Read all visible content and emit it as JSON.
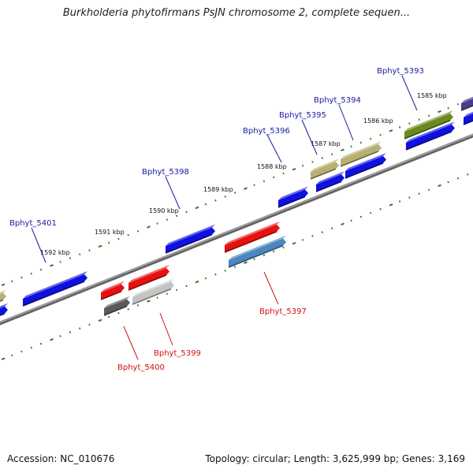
{
  "title": "Burkholderia phytofirmans PsJN chromosome 2, complete sequen...",
  "footer": {
    "accession": "Accession: NC_010676",
    "topology": "Topology: circular; Length: 3,625,999 bp; Genes: 3,169"
  },
  "colors": {
    "background": "#ffffff",
    "tick_dots": "#2e7d1e",
    "backbone": "#7a7a7a",
    "forward_label": "#1a1aa0",
    "reverse_label": "#cc1111",
    "gene_blue": "#1010e0",
    "gene_red": "#e81010",
    "gene_steelblue": "#4a86c0",
    "gene_khaki": "#b8b072",
    "gene_olive": "#6a8a20",
    "gene_grey": "#5a5a5a",
    "gene_lightgrey": "#c4c4c4",
    "gene_slate": "#4a3f8c"
  },
  "scale_labels": [
    "1585 kbp",
    "1586 kbp",
    "1587 kbp",
    "1588 kbp",
    "1589 kbp",
    "1590 kbp",
    "1591 kbp",
    "1592 kbp"
  ],
  "genes": [
    {
      "label": "Bphyt_5393",
      "strand": "forward",
      "color": "olive"
    },
    {
      "label": "Bphyt_5394",
      "strand": "forward",
      "color": "khaki"
    },
    {
      "label": "Bphyt_5395",
      "strand": "forward",
      "color": "khaki"
    },
    {
      "label": "Bphyt_5396",
      "strand": "forward",
      "color": "blue"
    },
    {
      "label": "Bphyt_5398",
      "strand": "forward",
      "color": "blue"
    },
    {
      "label": "Bphyt_5401",
      "strand": "forward",
      "color": "blue"
    },
    {
      "label": "Bphyt_5397",
      "strand": "reverse",
      "color": "red"
    },
    {
      "label": "Bphyt_5399",
      "strand": "reverse",
      "color": "red"
    },
    {
      "label": "Bphyt_5400",
      "strand": "reverse",
      "color": "red"
    }
  ]
}
